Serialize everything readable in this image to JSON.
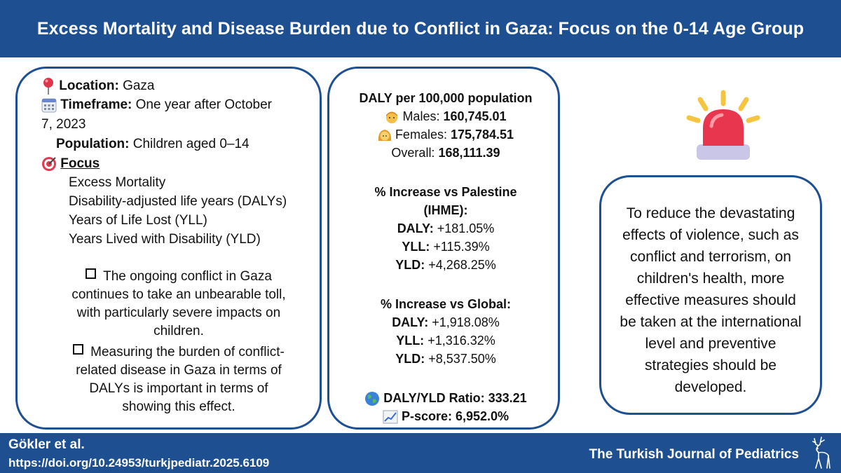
{
  "header": {
    "title": "Excess Mortality and Disease Burden due to Conflict in Gaza: Focus on the 0-14 Age Group"
  },
  "left": {
    "location_label": "Location:",
    "location_value": "Gaza",
    "timeframe_label": "Timeframe:",
    "timeframe_value_1": "One year after October",
    "timeframe_value_2": "7, 2023",
    "population_label": "Population:",
    "population_value": "Children aged 0–14",
    "focus_label": "Focus",
    "focus_items": [
      "Excess Mortality",
      "Disability-adjusted life years (DALYs)",
      "Years of Life Lost (YLL)",
      "Years Lived with Disability (YLD)"
    ],
    "bullet_1": [
      "The ongoing conflict in Gaza",
      "continues to take an unbearable toll,",
      "with particularly severe impacts on",
      "children."
    ],
    "bullet_2": [
      "Measuring the burden of conflict-",
      "related disease in Gaza in terms of",
      "DALYs is important in terms of",
      "showing this effect."
    ]
  },
  "middle": {
    "daly_title": "DALY per 100,000 population",
    "males_label": "Males:",
    "males_value": "160,745.01",
    "females_label": "Females:",
    "females_value": "175,784.51",
    "overall_label": "Overall:",
    "overall_value": "168,111.39",
    "palestine_title_1": "% Increase vs Palestine",
    "palestine_title_2": "(IHME):",
    "palestine": [
      {
        "label": "DALY:",
        "value": "+181.05%"
      },
      {
        "label": "YLL:",
        "value": "+115.39%"
      },
      {
        "label": "YLD:",
        "value": "+4,268.25%"
      }
    ],
    "global_title": "% Increase vs Global:",
    "global": [
      {
        "label": "DALY:",
        "value": "+1,918.08%"
      },
      {
        "label": "YLL:",
        "value": "+1,316.32%"
      },
      {
        "label": "YLD:",
        "value": "+8,537.50%"
      }
    ],
    "ratio_text": "DALY/YLD Ratio: 333.21",
    "pscore_text": "P-score: 6,952.0%"
  },
  "right": {
    "message": "To reduce the devastating effects of violence, such as conflict and terrorism, on children's health, more effective measures should be taken at the international level and preventive strategies should be developed."
  },
  "footer": {
    "authors": "Gökler et al.",
    "doi": "https://doi.org/10.24953/turkjpediatr.2025.6109",
    "journal": "The Turkish Journal of Pediatrics"
  },
  "icons": {
    "location": "pushpin-icon",
    "timeframe": "calendar-icon",
    "focus": "target-icon",
    "males": "boy-icon",
    "females": "girl-icon",
    "ratio": "globe-icon",
    "pscore": "chart-increasing-icon",
    "alert": "siren-icon",
    "journal_logo": "deer-icon"
  },
  "colors": {
    "brand_blue": "#1d4f91",
    "siren_red": "#e8364e",
    "siren_yellow": "#f5c542"
  }
}
